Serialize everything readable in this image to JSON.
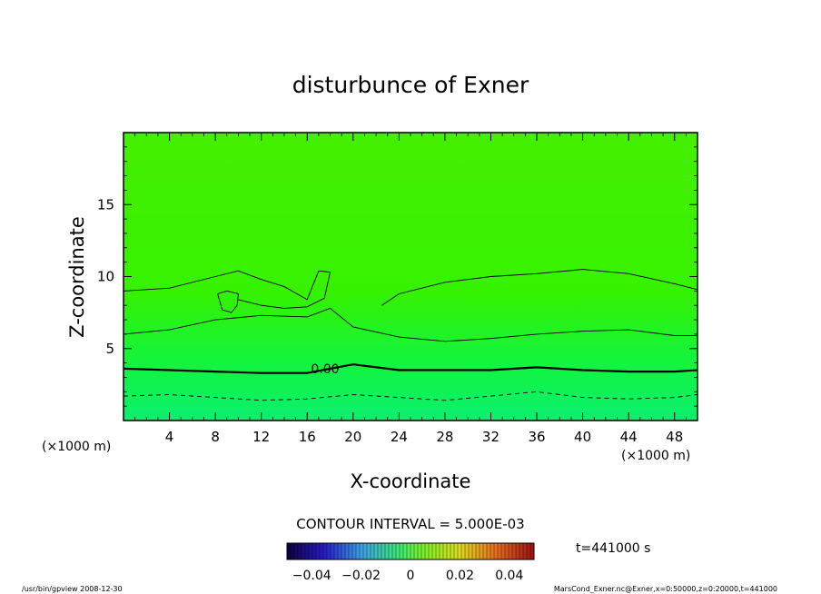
{
  "chart_data": {
    "type": "contour",
    "title": "disturbunce of Exner",
    "xlabel": "X-coordinate",
    "ylabel": "Z-coordinate",
    "x_unit": "(×1000 m)",
    "y_unit": "(×1000 m)",
    "xlim": [
      0,
      50
    ],
    "ylim": [
      0,
      20
    ],
    "x_ticks": [
      "4",
      "8",
      "12",
      "16",
      "20",
      "24",
      "28",
      "32",
      "36",
      "40",
      "44",
      "48"
    ],
    "y_ticks": [
      "5",
      "10",
      "15"
    ],
    "contour_interval": "CONTOUR INTERVAL = 5.000E-03",
    "contour_label": "0.00",
    "time": "t=441000 s",
    "colorbar": {
      "range": [
        -0.05,
        0.05
      ],
      "tick_labels": [
        "-0.04",
        "-0.02",
        "0",
        "0.02",
        "0.04"
      ],
      "tick_values": [
        -0.04,
        -0.02,
        0,
        0.02,
        0.04
      ]
    },
    "contours": [
      {
        "level": 0.005,
        "style": "dashed",
        "x": [
          0,
          4,
          8,
          12,
          16,
          20,
          24,
          28,
          32,
          36,
          40,
          44,
          48,
          50
        ],
        "y": [
          1.7,
          1.8,
          1.6,
          1.4,
          1.5,
          1.8,
          1.6,
          1.4,
          1.7,
          2.0,
          1.6,
          1.5,
          1.6,
          1.8
        ]
      },
      {
        "level": 0.0,
        "style": "bold",
        "x": [
          0,
          4,
          8,
          12,
          16,
          20,
          24,
          28,
          32,
          36,
          40,
          44,
          48,
          50
        ],
        "y": [
          3.6,
          3.5,
          3.4,
          3.3,
          3.3,
          3.9,
          3.5,
          3.5,
          3.5,
          3.7,
          3.5,
          3.4,
          3.4,
          3.5
        ]
      },
      {
        "level": -0.005,
        "style": "solid",
        "x": [
          0,
          4,
          8,
          12,
          16,
          18,
          20,
          24,
          28,
          32,
          36,
          40,
          44,
          48,
          50
        ],
        "y": [
          6.0,
          6.3,
          7.0,
          7.3,
          7.2,
          7.8,
          6.5,
          5.8,
          5.5,
          5.7,
          6.0,
          6.2,
          6.3,
          5.9,
          5.9
        ]
      },
      {
        "level": -0.005,
        "style": "solid",
        "x": [
          0,
          4,
          8,
          10,
          12,
          14,
          16,
          17,
          18,
          17.5,
          16,
          14,
          12,
          10
        ],
        "y": [
          9.0,
          9.2,
          10.0,
          10.4,
          9.8,
          9.3,
          8.4,
          10.4,
          10.3,
          8.5,
          7.9,
          7.8,
          8.0,
          8.4
        ]
      },
      {
        "level": -0.005,
        "style": "solid",
        "x": [
          22.5,
          24,
          28,
          32,
          36,
          40,
          44,
          48,
          50
        ],
        "y": [
          8.0,
          8.8,
          9.6,
          10.0,
          10.2,
          10.5,
          10.2,
          9.5,
          9.1
        ]
      },
      {
        "level": -0.005,
        "style": "solid",
        "x": [
          8.2,
          9.0,
          10.0,
          9.9,
          9.4,
          8.6,
          8.2
        ],
        "y": [
          8.8,
          9.0,
          8.8,
          8.0,
          7.5,
          7.7,
          8.8
        ]
      }
    ],
    "footer_left": "/usr/bin/gpview  2008-12-30",
    "footer_right": "MarsCond_Exner.nc@Exner,x=0:50000,z=0:20000,t=441000"
  }
}
